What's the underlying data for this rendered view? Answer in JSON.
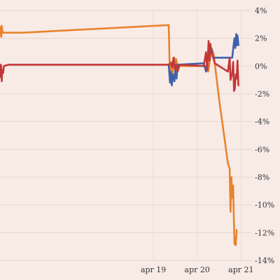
{
  "chart_data": {
    "type": "line",
    "title": "",
    "xlabel": "",
    "ylabel": "",
    "ylim": [
      -14,
      4
    ],
    "y_ticks": [
      {
        "value": 4,
        "label": "4%"
      },
      {
        "value": 2,
        "label": "2%"
      },
      {
        "value": 0,
        "label": "0%"
      },
      {
        "value": -2,
        "label": "-2%"
      },
      {
        "value": -4,
        "label": "-4%"
      },
      {
        "value": -6,
        "label": "-6%"
      },
      {
        "value": -8,
        "label": "-8%"
      },
      {
        "value": -10,
        "label": "-10%"
      },
      {
        "value": -12,
        "label": "-12%"
      },
      {
        "value": -14,
        "label": "-14%"
      }
    ],
    "xlim": [
      -3.5,
      2.25
    ],
    "x_ticks": [
      {
        "value": 0,
        "label": "apr 19"
      },
      {
        "value": 1,
        "label": "apr 20"
      },
      {
        "value": 2,
        "label": "apr 21"
      }
    ],
    "y_axis_position": "right",
    "grid": true,
    "legend": "none",
    "series": [
      {
        "color": "#e8832e",
        "points": [
          [
            -3.5,
            2.2
          ],
          [
            -3.49,
            2.8
          ],
          [
            -3.47,
            2.1
          ],
          [
            -3.46,
            2.9
          ],
          [
            -3.44,
            2.4
          ],
          [
            -2.97,
            2.4
          ],
          [
            0.35,
            2.95
          ],
          [
            0.37,
            0.1
          ],
          [
            0.39,
            -1.0
          ],
          [
            0.41,
            0.3
          ],
          [
            0.43,
            -0.8
          ],
          [
            0.46,
            0.1
          ],
          [
            0.48,
            0.6
          ],
          [
            0.5,
            -0.5
          ],
          [
            0.52,
            0.5
          ],
          [
            0.55,
            0.0
          ],
          [
            0.6,
            0.0
          ],
          [
            1.2,
            0.0
          ],
          [
            1.25,
            -0.4
          ],
          [
            1.3,
            0.6
          ],
          [
            1.34,
            1.2
          ],
          [
            1.38,
            0.8
          ],
          [
            1.42,
            -0.3
          ],
          [
            1.5,
            -2.4
          ],
          [
            1.7,
            -7.0
          ],
          [
            1.74,
            -7.4
          ],
          [
            1.76,
            -10.5
          ],
          [
            1.78,
            -8.0
          ],
          [
            1.8,
            -9.5
          ],
          [
            1.82,
            -8.6
          ],
          [
            1.83,
            -10.2
          ],
          [
            1.85,
            -12.8
          ],
          [
            1.88,
            -12.9
          ],
          [
            1.9,
            -11.8
          ]
        ]
      },
      {
        "color": "#3d62ad",
        "points": [
          [
            0.35,
            0.1
          ],
          [
            0.38,
            -1.2
          ],
          [
            0.4,
            -0.4
          ],
          [
            0.42,
            -1.4
          ],
          [
            0.45,
            -0.6
          ],
          [
            0.48,
            -1.1
          ],
          [
            0.5,
            -0.3
          ],
          [
            0.53,
            -0.9
          ],
          [
            0.55,
            0.1
          ],
          [
            1.15,
            0.2
          ],
          [
            1.2,
            -0.4
          ],
          [
            1.25,
            0.7
          ],
          [
            1.32,
            1.3
          ],
          [
            1.36,
            0.6
          ],
          [
            1.4,
            0.6
          ],
          [
            1.8,
            0.6
          ],
          [
            1.83,
            1.5
          ],
          [
            1.85,
            2.0
          ],
          [
            1.87,
            1.3
          ],
          [
            1.89,
            2.3
          ],
          [
            1.9,
            1.5
          ],
          [
            1.92,
            2.2
          ],
          [
            1.94,
            1.5
          ]
        ]
      },
      {
        "color": "#c2383a",
        "points": [
          [
            -3.5,
            -0.8
          ],
          [
            -3.48,
            0.1
          ],
          [
            -3.47,
            -0.2
          ],
          [
            -3.46,
            -1.1
          ],
          [
            -3.45,
            -0.3
          ],
          [
            -3.43,
            -0.5
          ],
          [
            -3.41,
            0.0
          ],
          [
            -3.3,
            0.1
          ],
          [
            0.35,
            0.1
          ],
          [
            0.4,
            0.2
          ],
          [
            0.43,
            -0.1
          ],
          [
            0.46,
            0.6
          ],
          [
            0.49,
            -0.2
          ],
          [
            0.52,
            0.1
          ],
          [
            0.55,
            -0.4
          ],
          [
            0.6,
            0.1
          ],
          [
            1.15,
            0.0
          ],
          [
            1.2,
            1.0
          ],
          [
            1.23,
            -0.3
          ],
          [
            1.26,
            1.8
          ],
          [
            1.28,
            0.4
          ],
          [
            1.3,
            1.6
          ],
          [
            1.32,
            1.0
          ],
          [
            1.36,
            0.7
          ],
          [
            1.4,
            0.2
          ],
          [
            1.7,
            -0.4
          ],
          [
            1.74,
            0.6
          ],
          [
            1.76,
            -1.0
          ],
          [
            1.8,
            -0.5
          ],
          [
            1.82,
            0.3
          ],
          [
            1.84,
            -1.8
          ],
          [
            1.86,
            -1.6
          ],
          [
            1.88,
            -0.6
          ],
          [
            1.9,
            -0.9
          ],
          [
            1.92,
            0.4
          ],
          [
            1.94,
            -1.4
          ]
        ]
      }
    ]
  }
}
